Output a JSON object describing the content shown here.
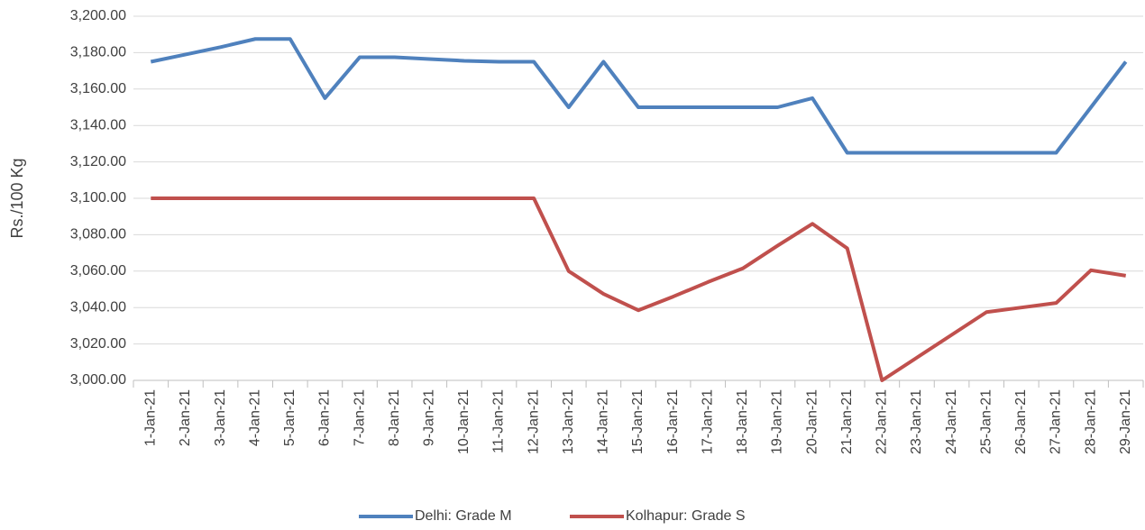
{
  "chart_data": {
    "type": "line",
    "y_label": "Rs./100 Kg",
    "categories": [
      "1-Jan-21",
      "2-Jan-21",
      "3-Jan-21",
      "4-Jan-21",
      "5-Jan-21",
      "6-Jan-21",
      "7-Jan-21",
      "8-Jan-21",
      "9-Jan-21",
      "10-Jan-21",
      "11-Jan-21",
      "12-Jan-21",
      "13-Jan-21",
      "14-Jan-21",
      "15-Jan-21",
      "16-Jan-21",
      "17-Jan-21",
      "18-Jan-21",
      "19-Jan-21",
      "20-Jan-21",
      "21-Jan-21",
      "22-Jan-21",
      "23-Jan-21",
      "24-Jan-21",
      "25-Jan-21",
      "26-Jan-21",
      "27-Jan-21",
      "28-Jan-21",
      "29-Jan-21"
    ],
    "series": [
      {
        "name": "Delhi: Grade M",
        "color": "#4f81bd",
        "values": [
          3175,
          3179,
          3183,
          3187.5,
          3187.5,
          3155,
          3177.5,
          3177.5,
          3176.5,
          3175.5,
          3175,
          3175,
          3150,
          3175,
          3150,
          3150,
          3150,
          3150,
          3150,
          3155,
          3125,
          3125,
          3125,
          3125,
          3125,
          3125,
          3125,
          3150,
          3175
        ]
      },
      {
        "name": "Kolhapur: Grade S",
        "color": "#c0504d",
        "values": [
          3100,
          3100,
          3100,
          3100,
          3100,
          3100,
          3100,
          3100,
          3100,
          3100,
          3100,
          3100,
          3060,
          3047.5,
          3038.5,
          3046,
          3054,
          3061.5,
          3074,
          3086,
          3072.5,
          3000,
          3012.5,
          3025,
          3037.5,
          3040,
          3042.5,
          3060.5,
          3057.5
        ]
      }
    ],
    "ylim": [
      3000,
      3200
    ],
    "yticks": [
      {
        "value": 3000,
        "label": "3,000.00"
      },
      {
        "value": 3020,
        "label": "3,020.00"
      },
      {
        "value": 3040,
        "label": "3,040.00"
      },
      {
        "value": 3060,
        "label": "3,060.00"
      },
      {
        "value": 3080,
        "label": "3,080.00"
      },
      {
        "value": 3100,
        "label": "3,100.00"
      },
      {
        "value": 3120,
        "label": "3,120.00"
      },
      {
        "value": 3140,
        "label": "3,140.00"
      },
      {
        "value": 3160,
        "label": "3,160.00"
      },
      {
        "value": 3180,
        "label": "3,180.00"
      },
      {
        "value": 3200,
        "label": "3,200.00"
      }
    ],
    "grid": true,
    "legend": "bottom"
  }
}
